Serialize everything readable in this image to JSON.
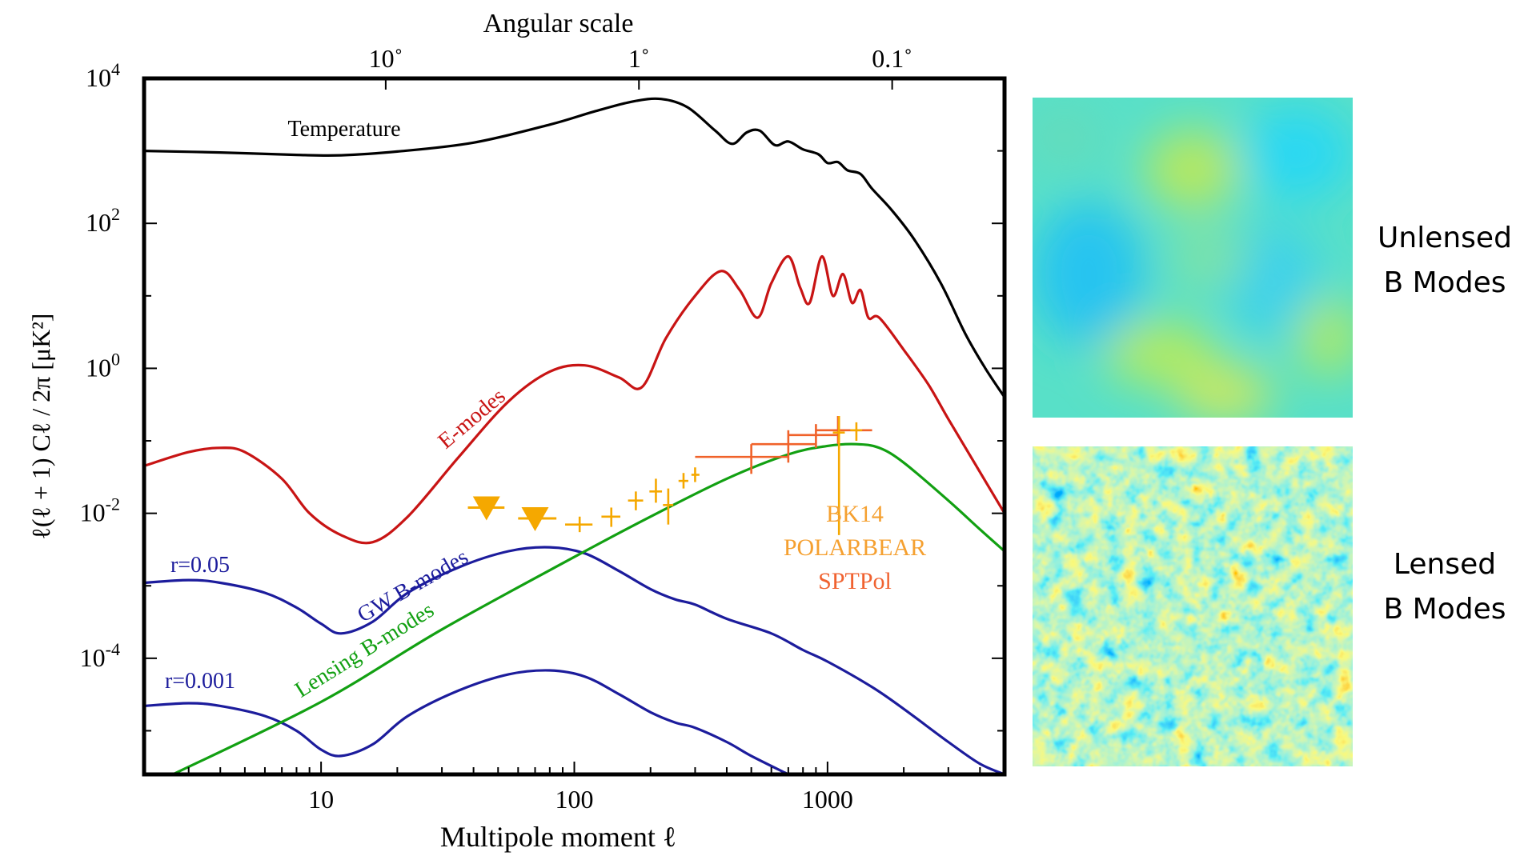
{
  "chart_data": {
    "type": "line",
    "title": "",
    "xlabel": "Multipole moment ℓ",
    "ylabel": "ℓ(ℓ + 1) Cℓ / 2π [μK²]",
    "x_scale": "log",
    "y_scale": "log",
    "xlim": [
      2,
      5000
    ],
    "ylim": [
      2.5e-06,
      10000
    ],
    "x_ticks": [
      {
        "value": 10,
        "label": "10"
      },
      {
        "value": 100,
        "label": "100"
      },
      {
        "value": 1000,
        "label": "1000"
      }
    ],
    "y_ticks": [
      {
        "value": 10000,
        "base": "10",
        "exp": "4"
      },
      {
        "value": 100,
        "base": "10",
        "exp": "2"
      },
      {
        "value": 1,
        "base": "10",
        "exp": "0"
      },
      {
        "value": 0.01,
        "base": "10",
        "exp": "-2"
      },
      {
        "value": 0.0001,
        "base": "10",
        "exp": "-4"
      }
    ],
    "top_axis": {
      "label": "Angular scale",
      "ticks": [
        {
          "ell": 18,
          "label": "10˚"
        },
        {
          "ell": 180,
          "label": "1˚"
        },
        {
          "ell": 1800,
          "label": "0.1˚"
        }
      ]
    },
    "grid": false,
    "legend": "none",
    "series": [
      {
        "name": "Temperature",
        "color": "#000000",
        "points": [
          [
            2,
            1000
          ],
          [
            4,
            950
          ],
          [
            8,
            880
          ],
          [
            12,
            870
          ],
          [
            20,
            980
          ],
          [
            40,
            1300
          ],
          [
            80,
            2300
          ],
          [
            120,
            3500
          ],
          [
            170,
            4800
          ],
          [
            220,
            5200
          ],
          [
            280,
            4000
          ],
          [
            360,
            1900
          ],
          [
            420,
            1250
          ],
          [
            480,
            1800
          ],
          [
            540,
            1900
          ],
          [
            620,
            1200
          ],
          [
            700,
            1350
          ],
          [
            800,
            1050
          ],
          [
            920,
            900
          ],
          [
            1000,
            680
          ],
          [
            1100,
            700
          ],
          [
            1200,
            540
          ],
          [
            1350,
            480
          ],
          [
            1500,
            300
          ],
          [
            1800,
            150
          ],
          [
            2200,
            60
          ],
          [
            2800,
            15
          ],
          [
            3500,
            3
          ],
          [
            4200,
            1
          ],
          [
            5000,
            0.4
          ]
        ]
      },
      {
        "name": "E-modes",
        "color": "#c81414",
        "points": [
          [
            2,
            0.045
          ],
          [
            3,
            0.07
          ],
          [
            4,
            0.08
          ],
          [
            5,
            0.07
          ],
          [
            7,
            0.03
          ],
          [
            9,
            0.01
          ],
          [
            12,
            0.005
          ],
          [
            16,
            0.004
          ],
          [
            22,
            0.009
          ],
          [
            35,
            0.06
          ],
          [
            55,
            0.35
          ],
          [
            80,
            0.9
          ],
          [
            110,
            1.1
          ],
          [
            150,
            0.75
          ],
          [
            185,
            0.55
          ],
          [
            230,
            2.6
          ],
          [
            300,
            10
          ],
          [
            380,
            22
          ],
          [
            450,
            12
          ],
          [
            530,
            5
          ],
          [
            600,
            15
          ],
          [
            700,
            35
          ],
          [
            780,
            13
          ],
          [
            850,
            8
          ],
          [
            950,
            35
          ],
          [
            1050,
            10
          ],
          [
            1150,
            20
          ],
          [
            1250,
            8
          ],
          [
            1350,
            12
          ],
          [
            1450,
            5
          ],
          [
            1600,
            5
          ],
          [
            2000,
            1.8
          ],
          [
            2500,
            0.6
          ],
          [
            3000,
            0.2
          ],
          [
            3800,
            0.05
          ],
          [
            5000,
            0.01
          ]
        ]
      },
      {
        "name": "GW B-modes",
        "label": "r=0.05",
        "color": "#1c1c9c",
        "points": [
          [
            2,
            0.0011
          ],
          [
            3,
            0.0012
          ],
          [
            4,
            0.0011
          ],
          [
            6,
            0.0008
          ],
          [
            8,
            0.0005
          ],
          [
            10,
            0.0003
          ],
          [
            12,
            0.00022
          ],
          [
            16,
            0.00032
          ],
          [
            22,
            0.0008
          ],
          [
            35,
            0.0018
          ],
          [
            55,
            0.003
          ],
          [
            80,
            0.0034
          ],
          [
            110,
            0.0028
          ],
          [
            150,
            0.0016
          ],
          [
            200,
            0.0009
          ],
          [
            250,
            0.00065
          ],
          [
            300,
            0.00055
          ],
          [
            400,
            0.00035
          ],
          [
            600,
            0.00022
          ],
          [
            800,
            0.00013
          ],
          [
            1000,
            9e-05
          ],
          [
            1500,
            4e-05
          ],
          [
            2000,
            2e-05
          ],
          [
            3000,
            7e-06
          ],
          [
            4000,
            3.5e-06
          ],
          [
            5000,
            2.5e-06
          ]
        ]
      },
      {
        "name": "",
        "label": "r=0.001",
        "color": "#1c1c9c",
        "points": [
          [
            2,
            2.2e-05
          ],
          [
            3,
            2.4e-05
          ],
          [
            4,
            2.2e-05
          ],
          [
            6,
            1.6e-05
          ],
          [
            8,
            1e-05
          ],
          [
            10,
            5.5e-06
          ],
          [
            12,
            4.5e-06
          ],
          [
            16,
            6.5e-06
          ],
          [
            22,
            1.6e-05
          ],
          [
            35,
            3.6e-05
          ],
          [
            55,
            6e-05
          ],
          [
            80,
            6.8e-05
          ],
          [
            110,
            5.6e-05
          ],
          [
            150,
            3.2e-05
          ],
          [
            200,
            1.8e-05
          ],
          [
            250,
            1.3e-05
          ],
          [
            300,
            1.1e-05
          ],
          [
            400,
            7e-06
          ],
          [
            500,
            4.5e-06
          ],
          [
            700,
            2.5e-06
          ]
        ]
      },
      {
        "name": "Lensing B-modes",
        "color": "#12a012",
        "points": [
          [
            2.6,
            2.5e-06
          ],
          [
            10,
            2.5e-05
          ],
          [
            30,
            0.00025
          ],
          [
            100,
            0.0025
          ],
          [
            200,
            0.009
          ],
          [
            400,
            0.03
          ],
          [
            700,
            0.065
          ],
          [
            1000,
            0.085
          ],
          [
            1300,
            0.09
          ],
          [
            1600,
            0.08
          ],
          [
            2000,
            0.05
          ],
          [
            3000,
            0.015
          ],
          [
            4000,
            0.006
          ],
          [
            5000,
            0.003
          ]
        ]
      }
    ],
    "data_label": [
      "BK14",
      "POLARBEAR",
      "SPTPol"
    ],
    "upper_limits": [
      {
        "ell": 45,
        "value": 0.012,
        "xerr": [
          38,
          53
        ],
        "color": "#f5a800"
      },
      {
        "ell": 70,
        "value": 0.0085,
        "xerr": [
          60,
          85
        ],
        "color": "#f5a800"
      }
    ],
    "measurements": [
      {
        "ell": 105,
        "value": 0.007,
        "x_range": [
          92,
          118
        ],
        "y_range": [
          0.0055,
          0.009
        ],
        "color": "#f5a800"
      },
      {
        "ell": 140,
        "value": 0.009,
        "x_range": [
          128,
          152
        ],
        "y_range": [
          0.0065,
          0.012
        ],
        "color": "#f5a800"
      },
      {
        "ell": 175,
        "value": 0.015,
        "x_range": [
          163,
          187
        ],
        "y_range": [
          0.011,
          0.02
        ],
        "color": "#f5a800"
      },
      {
        "ell": 210,
        "value": 0.02,
        "x_range": [
          198,
          222
        ],
        "y_range": [
          0.014,
          0.03
        ],
        "color": "#f5a800"
      },
      {
        "ell": 235,
        "value": 0.013,
        "x_range": [
          224,
          246
        ],
        "y_range": [
          0.007,
          0.022
        ],
        "color": "#f5a800"
      },
      {
        "ell": 270,
        "value": 0.028,
        "x_range": [
          258,
          282
        ],
        "y_range": [
          0.022,
          0.036
        ],
        "color": "#f5a800"
      },
      {
        "ell": 300,
        "value": 0.034,
        "x_range": [
          290,
          312
        ],
        "y_range": [
          0.027,
          0.043
        ],
        "color": "#f5a800"
      },
      {
        "ell": 500,
        "value": 0.06,
        "x_range": [
          300,
          700
        ],
        "y_range": [
          0.035,
          0.09
        ],
        "color": "#f0622a"
      },
      {
        "ell": 700,
        "value": 0.09,
        "x_range": [
          500,
          900
        ],
        "y_range": [
          0.05,
          0.14
        ],
        "color": "#f0622a"
      },
      {
        "ell": 900,
        "value": 0.12,
        "x_range": [
          700,
          1100
        ],
        "y_range": [
          0.08,
          0.17
        ],
        "color": "#f0622a"
      },
      {
        "ell": 1100,
        "value": 0.14,
        "x_range": [
          900,
          1500
        ],
        "y_range": [
          0.09,
          0.22
        ],
        "color": "#f0622a"
      },
      {
        "ell": 1110,
        "value": 0.13,
        "x_range": [
          1050,
          1170
        ],
        "y_range": [
          0.005,
          0.22
        ],
        "color": "#f5a800"
      },
      {
        "ell": 1300,
        "value": 0.14,
        "x_range": [
          1230,
          1370
        ],
        "y_range": [
          0.1,
          0.18
        ],
        "color": "#f5a800"
      }
    ]
  },
  "maps": {
    "unlensed": {
      "label_line1": "Unlensed",
      "label_line2": "B Modes"
    },
    "lensed": {
      "label_line1": "Lensed",
      "label_line2": "B Modes"
    }
  }
}
